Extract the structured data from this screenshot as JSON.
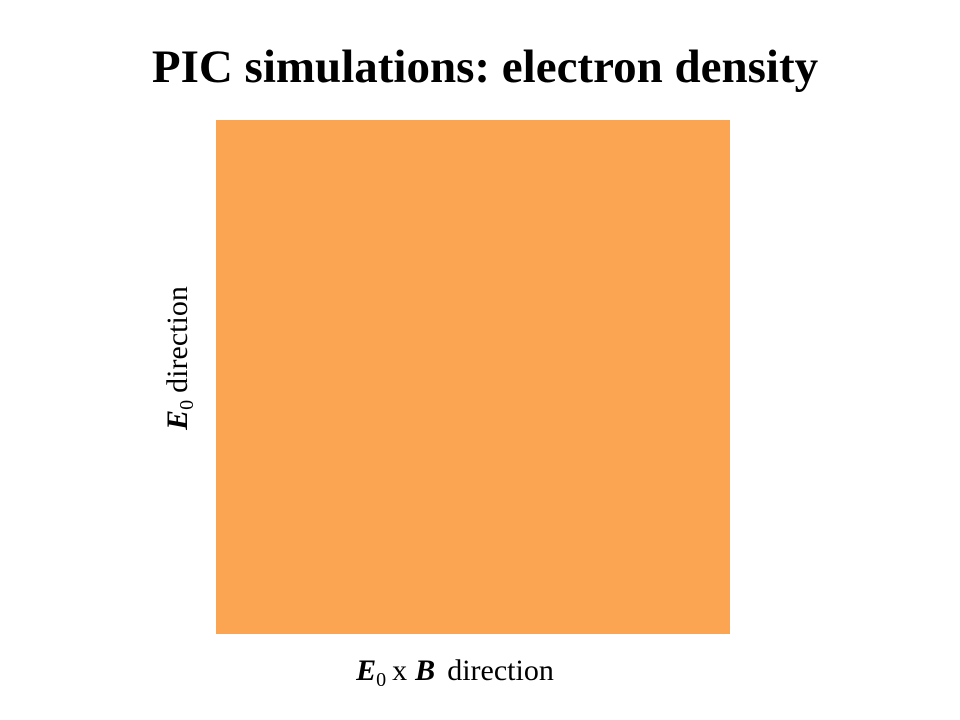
{
  "slide": {
    "title": "PIC simulations: electron density",
    "y_label": {
      "symbol": "E",
      "subscript": "0",
      "text": "direction"
    },
    "x_label": {
      "symbol": "E",
      "subscript": "0",
      "operator": "x",
      "symbol2": "B",
      "text": "direction"
    }
  }
}
